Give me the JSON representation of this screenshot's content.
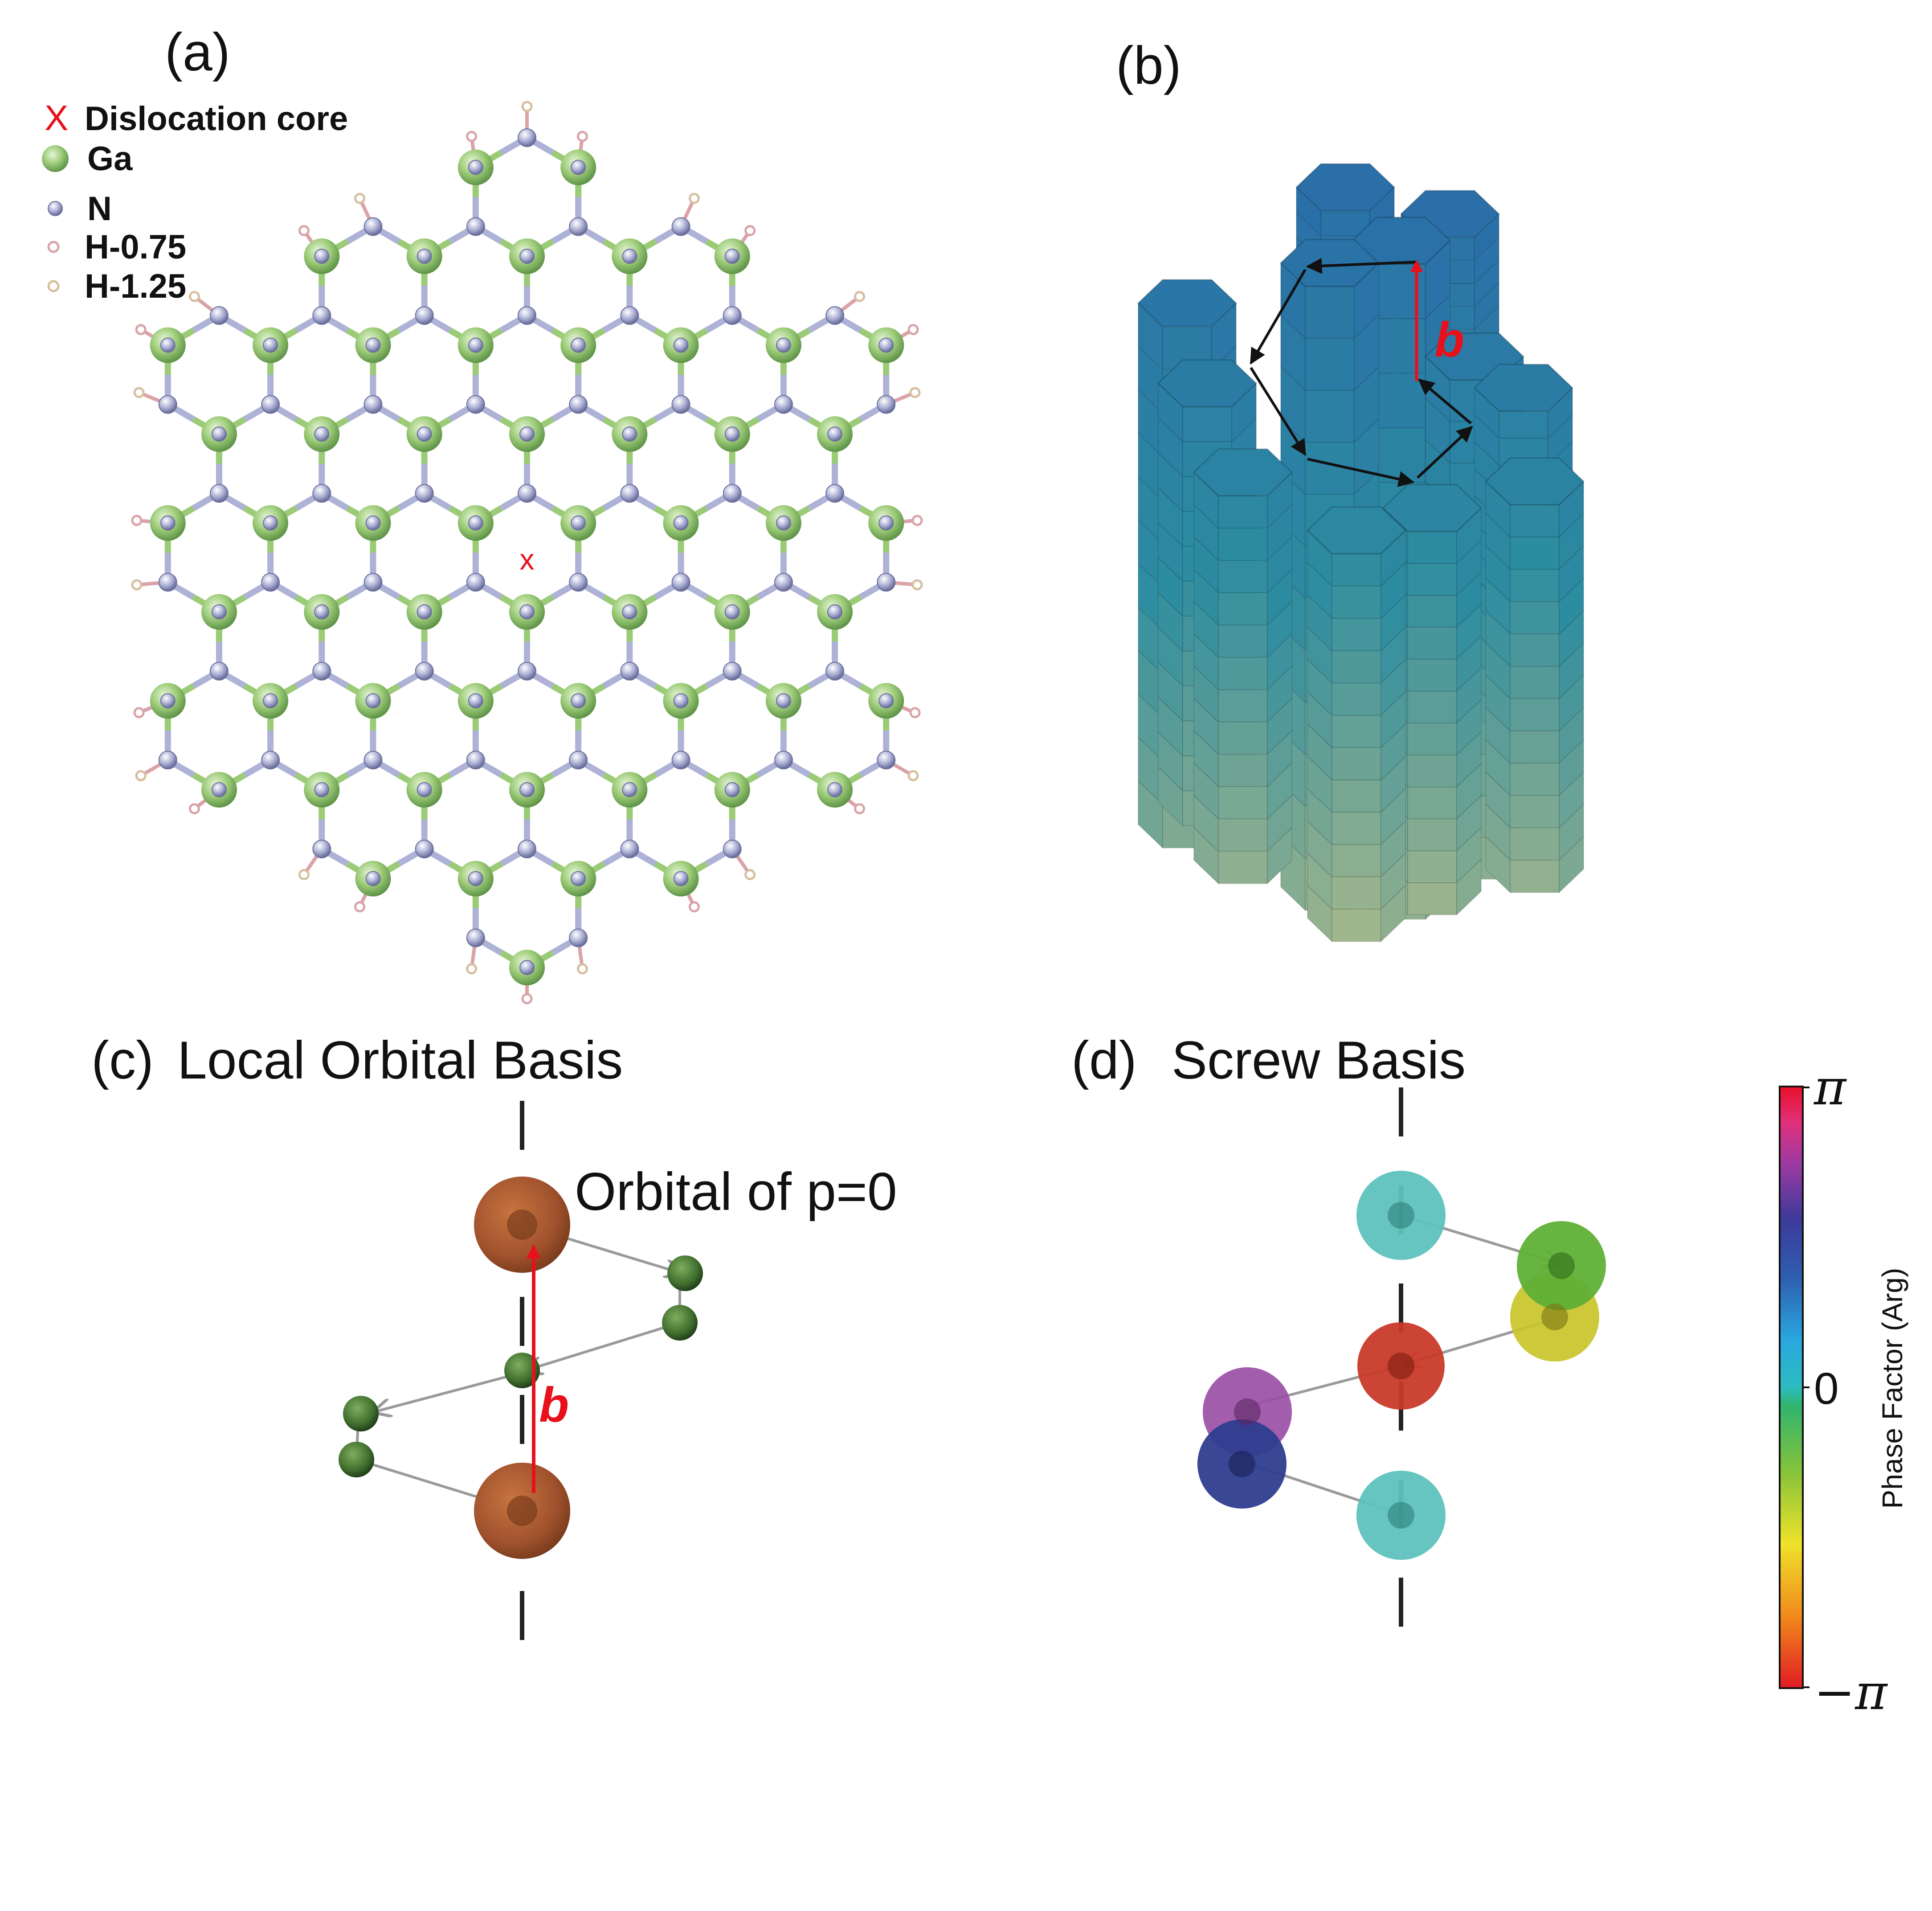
{
  "panel_a": {
    "label": "(a)",
    "legend": [
      {
        "symbol": "x-mark",
        "text": "Dislocation core",
        "color": "#e8101a"
      },
      {
        "symbol": "ga-atom",
        "text": "Ga",
        "color": "#8fc46a"
      },
      {
        "symbol": "n-atom",
        "text": "N",
        "color": "#9aa0c8"
      },
      {
        "symbol": "h075-atom",
        "text": "H-0.75",
        "color": "#d9a3a8"
      },
      {
        "symbol": "h125-atom",
        "text": "H-1.25",
        "color": "#d7bfa0"
      }
    ],
    "core_marker": "x"
  },
  "panel_b": {
    "label": "(b)",
    "burgers_label": "b"
  },
  "panel_c": {
    "label": "(c)",
    "title": "Local Orbital Basis",
    "annotation": "Orbital of p=0",
    "burgers_label": "b"
  },
  "panel_d": {
    "label": "(d)",
    "title": "Screw Basis"
  },
  "colorbar": {
    "title": "Phase Factor (Arg)",
    "tick_top": "π",
    "tick_mid": "0",
    "tick_bottom": "−π"
  },
  "colors": {
    "burgers_red": "#e8101a",
    "orbital_brown": "#a0522d",
    "small_green": "#3f6e2e",
    "hex_blue": "#2a6fa8",
    "hex_bottom": "#a4b78c"
  }
}
